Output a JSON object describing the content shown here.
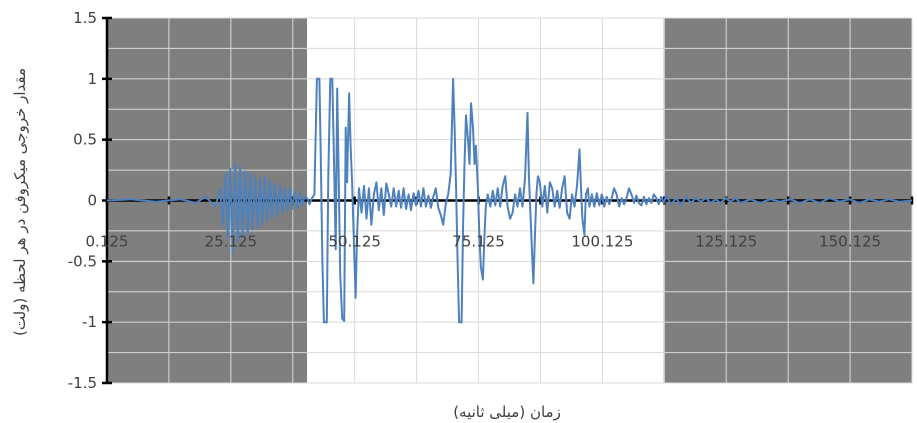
{
  "chart_data": {
    "type": "line",
    "title": "",
    "xlabel": "زمان (میلی ثانیه)",
    "ylabel": "مقدار خروجی میکروفن در هر لحظه (ولت)",
    "xlim": [
      0.125,
      162.625
    ],
    "ylim": [
      -1.5,
      1.5
    ],
    "x_tick_labels": [
      "0.125",
      "25.125",
      "50.125",
      "75.125",
      "100.125",
      "125.125",
      "150.125"
    ],
    "x_tick_values": [
      0.125,
      25.125,
      50.125,
      75.125,
      100.125,
      125.125,
      150.125
    ],
    "y_tick_labels": [
      "1.5",
      "1",
      "0.5",
      "0",
      "-0.5",
      "-1",
      "-1.5"
    ],
    "y_tick_values": [
      1.5,
      1,
      0.5,
      0,
      -0.5,
      -1,
      -1.5
    ],
    "grid": true,
    "shaded_regions": [
      {
        "from": 0.125,
        "to": 40.5,
        "color": "#7f7f7f"
      },
      {
        "from": 112.5,
        "to": 162.625,
        "color": "#7f7f7f"
      }
    ],
    "series": [
      {
        "color": "#4f81bd",
        "points": [
          [
            0.125,
            0
          ],
          [
            5,
            0.01
          ],
          [
            10,
            -0.01
          ],
          [
            15,
            0.01
          ],
          [
            18,
            -0.02
          ],
          [
            20,
            0.03
          ],
          [
            22,
            -0.05
          ],
          [
            23,
            0.1
          ],
          [
            23.5,
            -0.2
          ],
          [
            24,
            0.22
          ],
          [
            24.5,
            -0.3
          ],
          [
            25,
            0.26
          ],
          [
            25.5,
            -0.44
          ],
          [
            26,
            0.3
          ],
          [
            26.5,
            -0.33
          ],
          [
            27,
            0.28
          ],
          [
            27.5,
            -0.3
          ],
          [
            28,
            0.24
          ],
          [
            28.5,
            -0.28
          ],
          [
            29,
            0.22
          ],
          [
            29.5,
            -0.24
          ],
          [
            30,
            0.2
          ],
          [
            30.5,
            -0.22
          ],
          [
            31,
            0.18
          ],
          [
            31.5,
            -0.2
          ],
          [
            32,
            0.2
          ],
          [
            32.5,
            -0.17
          ],
          [
            33,
            0.16
          ],
          [
            33.5,
            -0.14
          ],
          [
            34,
            0.14
          ],
          [
            34.5,
            -0.12
          ],
          [
            35,
            0.12
          ],
          [
            35.5,
            -0.1
          ],
          [
            36,
            0.1
          ],
          [
            36.5,
            -0.08
          ],
          [
            37,
            0.1
          ],
          [
            37.5,
            -0.07
          ],
          [
            38,
            0.08
          ],
          [
            38.5,
            -0.06
          ],
          [
            39,
            0.06
          ],
          [
            39.5,
            -0.04
          ],
          [
            40,
            0.03
          ],
          [
            40.5,
            0.02
          ],
          [
            41,
            -0.03
          ],
          [
            41.5,
            0.02
          ],
          [
            42,
            0.05
          ],
          [
            42.5,
            1
          ],
          [
            43,
            1
          ],
          [
            43.3,
            0.3
          ],
          [
            43.6,
            -0.5
          ],
          [
            43.9,
            -1
          ],
          [
            44.5,
            -1
          ],
          [
            44.8,
            0.2
          ],
          [
            45.2,
            1
          ],
          [
            45.6,
            1
          ],
          [
            46,
            0.2
          ],
          [
            46.3,
            -0.4
          ],
          [
            46.6,
            0.92
          ],
          [
            46.9,
            0.2
          ],
          [
            47.2,
            -0.6
          ],
          [
            47.6,
            -0.97
          ],
          [
            48,
            -0.99
          ],
          [
            48.3,
            0.6
          ],
          [
            48.6,
            0.15
          ],
          [
            49,
            0.88
          ],
          [
            49.3,
            0.45
          ],
          [
            49.6,
            0.15
          ],
          [
            50,
            -0.4
          ],
          [
            50.3,
            -0.8
          ],
          [
            50.6,
            -0.3
          ],
          [
            51,
            0.1
          ],
          [
            51.5,
            -0.1
          ],
          [
            52,
            0.12
          ],
          [
            52.5,
            -0.15
          ],
          [
            53,
            0.1
          ],
          [
            53.5,
            -0.2
          ],
          [
            54,
            0.05
          ],
          [
            54.5,
            0.15
          ],
          [
            55,
            -0.08
          ],
          [
            55.5,
            0.1
          ],
          [
            56,
            -0.12
          ],
          [
            56.5,
            0.14
          ],
          [
            57,
            0.05
          ],
          [
            57.5,
            -0.05
          ],
          [
            58,
            0.1
          ],
          [
            58.5,
            -0.05
          ],
          [
            59,
            0.08
          ],
          [
            59.5,
            -0.06
          ],
          [
            60,
            0.1
          ],
          [
            60.5,
            -0.07
          ],
          [
            61,
            0.05
          ],
          [
            61.5,
            -0.08
          ],
          [
            62,
            0.06
          ],
          [
            62.5,
            -0.04
          ],
          [
            63,
            0.08
          ],
          [
            63.5,
            -0.05
          ],
          [
            64,
            0.1
          ],
          [
            64.5,
            -0.05
          ],
          [
            65,
            0.04
          ],
          [
            65.5,
            -0.06
          ],
          [
            66,
            0.03
          ],
          [
            66.5,
            0.1
          ],
          [
            67,
            -0.06
          ],
          [
            67.5,
            -0.12
          ],
          [
            68,
            -0.2
          ],
          [
            68.5,
            -0.03
          ],
          [
            69,
            0.05
          ],
          [
            69.5,
            0.22
          ],
          [
            70,
            1
          ],
          [
            70.3,
            0.6
          ],
          [
            70.6,
            0.1
          ],
          [
            70.9,
            -0.5
          ],
          [
            71.2,
            -1
          ],
          [
            71.7,
            -1
          ],
          [
            72,
            -0.2
          ],
          [
            72.3,
            0.3
          ],
          [
            72.6,
            0.7
          ],
          [
            73,
            0.5
          ],
          [
            73.3,
            0.3
          ],
          [
            73.6,
            0.8
          ],
          [
            74,
            0.6
          ],
          [
            74.3,
            0.3
          ],
          [
            74.6,
            0.45
          ],
          [
            75,
            0.1
          ],
          [
            75.3,
            -0.3
          ],
          [
            75.6,
            -0.55
          ],
          [
            76,
            -0.65
          ],
          [
            76.3,
            -0.3
          ],
          [
            76.6,
            -0.05
          ],
          [
            77,
            0.05
          ],
          [
            77.5,
            -0.05
          ],
          [
            78,
            0.08
          ],
          [
            78.5,
            -0.04
          ],
          [
            79,
            0.1
          ],
          [
            79.5,
            -0.05
          ],
          [
            80,
            0.12
          ],
          [
            80.5,
            0.2
          ],
          [
            81,
            -0.05
          ],
          [
            81.5,
            -0.15
          ],
          [
            82,
            -0.1
          ],
          [
            82.5,
            0.05
          ],
          [
            83,
            -0.05
          ],
          [
            83.5,
            0.1
          ],
          [
            84,
            -0.05
          ],
          [
            84.5,
            0.18
          ],
          [
            85,
            0.72
          ],
          [
            85.3,
            0.2
          ],
          [
            85.6,
            -0.1
          ],
          [
            85.9,
            -0.4
          ],
          [
            86.2,
            -0.68
          ],
          [
            86.5,
            -0.3
          ],
          [
            86.8,
            0.05
          ],
          [
            87.1,
            0.2
          ],
          [
            87.5,
            0.15
          ],
          [
            88,
            -0.05
          ],
          [
            88.5,
            0.12
          ],
          [
            89,
            -0.1
          ],
          [
            89.5,
            0.15
          ],
          [
            90,
            0.1
          ],
          [
            90.5,
            -0.05
          ],
          [
            91,
            0.08
          ],
          [
            91.5,
            -0.06
          ],
          [
            92,
            0.1
          ],
          [
            92.5,
            0.2
          ],
          [
            93,
            -0.1
          ],
          [
            93.5,
            -0.15
          ],
          [
            94,
            0.05
          ],
          [
            94.5,
            -0.05
          ],
          [
            95,
            0.12
          ],
          [
            95.5,
            0.42
          ],
          [
            95.8,
            0.1
          ],
          [
            96.1,
            -0.15
          ],
          [
            96.5,
            -0.28
          ],
          [
            96.8,
            0.05
          ],
          [
            97.2,
            0.1
          ],
          [
            97.5,
            -0.05
          ],
          [
            98,
            0.05
          ],
          [
            98.5,
            -0.05
          ],
          [
            99,
            0.06
          ],
          [
            99.5,
            -0.04
          ],
          [
            100,
            0.05
          ],
          [
            100.5,
            -0.05
          ],
          [
            101,
            0.03
          ],
          [
            101.5,
            -0.03
          ],
          [
            102,
            0.02
          ],
          [
            102.5,
            0.1
          ],
          [
            103,
            0.05
          ],
          [
            103.5,
            -0.05
          ],
          [
            104,
            0.02
          ],
          [
            104.5,
            -0.03
          ],
          [
            105,
            0.02
          ],
          [
            105.5,
            0.1
          ],
          [
            106,
            0.05
          ],
          [
            106.5,
            -0.02
          ],
          [
            107,
            0.04
          ],
          [
            107.5,
            -0.02
          ],
          [
            108,
            -0.04
          ],
          [
            108.5,
            0.03
          ],
          [
            109,
            -0.03
          ],
          [
            109.5,
            0.02
          ],
          [
            110,
            -0.02
          ],
          [
            110.5,
            0.05
          ],
          [
            111,
            0.02
          ],
          [
            111.5,
            -0.03
          ],
          [
            112,
            0.03
          ],
          [
            112.5,
            -0.02
          ],
          [
            113,
            0.04
          ],
          [
            114,
            -0.03
          ],
          [
            115,
            0.02
          ],
          [
            116,
            -0.04
          ],
          [
            117,
            0.03
          ],
          [
            118,
            -0.02
          ],
          [
            119,
            0.02
          ],
          [
            120,
            -0.01
          ],
          [
            121,
            0.02
          ],
          [
            122,
            -0.02
          ],
          [
            123,
            0.01
          ],
          [
            124,
            -0.02
          ],
          [
            125,
            0.02
          ],
          [
            126,
            -0.01
          ],
          [
            127,
            0.02
          ],
          [
            128,
            -0.02
          ],
          [
            130,
            0.01
          ],
          [
            132,
            -0.02
          ],
          [
            134,
            0.01
          ],
          [
            136,
            -0.01
          ],
          [
            138,
            0.01
          ],
          [
            140,
            -0.02
          ],
          [
            142,
            0.01
          ],
          [
            144,
            -0.02
          ],
          [
            146,
            0.02
          ],
          [
            148,
            -0.01
          ],
          [
            150,
            0.01
          ],
          [
            152,
            -0.02
          ],
          [
            154,
            0.01
          ],
          [
            156,
            -0.01
          ],
          [
            158,
            0.01
          ],
          [
            160,
            -0.01
          ],
          [
            162.625,
            0
          ]
        ]
      }
    ]
  },
  "colors": {
    "line": "#4f81bd",
    "shade": "#7f7f7f",
    "grid": "#d9d9d9",
    "axis": "#000000",
    "text": "#404040"
  }
}
